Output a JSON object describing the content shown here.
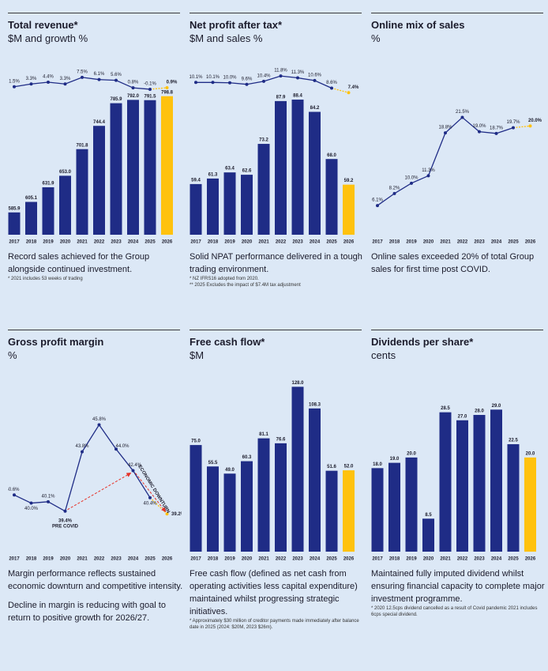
{
  "chart_data": [
    {
      "type": "combo",
      "title": "Total revenue*",
      "subtitle": "$M and growth %",
      "categories": [
        "2017",
        "2018",
        "2019",
        "2020",
        "2021",
        "2022",
        "2023",
        "2024",
        "2025",
        "2026"
      ],
      "series": [
        {
          "type": "bar",
          "color": "#1f2c86",
          "values": [
            585.9,
            605.1,
            631.9,
            653.0,
            701.8,
            744.4,
            785.9,
            792.0,
            791.5,
            798.8
          ],
          "value_labels": [
            "585.9",
            "605.1",
            "631.9",
            "653.0",
            "701.8",
            "744.4",
            "785.9",
            "792.0",
            "791.5",
            "798.8"
          ]
        },
        {
          "type": "line",
          "axis": "y2",
          "color": "#1f2c86",
          "values": [
            1.5,
            3.3,
            4.4,
            3.3,
            7.5,
            6.1,
            5.6,
            0.8,
            -0.1,
            0.9
          ],
          "value_labels": [
            "1.5%",
            "3.3%",
            "4.4%",
            "3.3%",
            "7.5%",
            "6.1%",
            "5.6%",
            "0.8%",
            "-0.1%",
            "0.9%"
          ]
        }
      ],
      "ylim": [
        545,
        849
      ],
      "y2lim": [
        -93,
        13
      ],
      "highlight_color": "#ffc20e",
      "description": [
        "Record sales achieved for the Group alongside continued investment."
      ],
      "notes": [
        "* 2021 includes 53 weeks of trading"
      ]
    },
    {
      "type": "combo",
      "title": "Net profit after tax*",
      "subtitle": "$M and sales %",
      "categories": [
        "2017",
        "2018",
        "2019",
        "2020",
        "2021",
        "2022",
        "2023",
        "2024",
        "2025",
        "2026"
      ],
      "series": [
        {
          "type": "bar",
          "color": "#1f2c86",
          "values": [
            59.4,
            61.3,
            63.4,
            62.6,
            73.2,
            87.9,
            88.4,
            84.2,
            68.0,
            59.2
          ],
          "value_labels": [
            "59.4",
            "61.3",
            "63.4",
            "62.6",
            "73.2",
            "87.9",
            "88.4",
            "84.2",
            "68.0",
            "59.2"
          ]
        },
        {
          "type": "line",
          "axis": "y2",
          "color": "#1f2c86",
          "values": [
            10.1,
            10.1,
            10.0,
            9.6,
            10.4,
            11.8,
            11.3,
            10.6,
            8.6,
            7.4
          ],
          "value_labels": [
            "10.1%",
            "10.1%",
            "10.0%",
            "9.6%",
            "10.4%",
            "11.8%",
            "11.3%",
            "10.6%",
            "8.6%",
            "7.4%"
          ]
        }
      ],
      "ylim": [
        42,
        99
      ],
      "y2lim": [
        -30,
        13.7
      ],
      "highlight_color": "#ffc20e",
      "description": [
        "Solid NPAT performance delivered in a tough trading environment."
      ],
      "notes": [
        "* NZ IFRS16 adopted from 2020.",
        "** 2025 Excludes the impact of $7.4M tax adjustment"
      ]
    },
    {
      "type": "line",
      "title": "Online mix of sales",
      "subtitle": "%",
      "categories": [
        "2017",
        "2018",
        "2019",
        "2020",
        "2021",
        "2022",
        "2023",
        "2024",
        "2025",
        "2026"
      ],
      "series": [
        {
          "type": "line",
          "color": "#1f2c86",
          "values": [
            6.1,
            8.2,
            10.0,
            11.3,
            18.8,
            21.5,
            19.0,
            18.7,
            19.7,
            20.0
          ],
          "value_labels": [
            "6.1%",
            "8.2%",
            "10.0%",
            "11.3%",
            "18.8%",
            "21.5%",
            "19.0%",
            "18.7%",
            "19.7%",
            "20.0%"
          ]
        }
      ],
      "ylim": [
        1,
        30
      ],
      "highlight_color": "#ffc20e",
      "description": [
        "Online sales exceeded 20% of total Group sales for first time post COVID."
      ]
    },
    {
      "type": "line",
      "title": "Gross profit margin",
      "subtitle": "%",
      "categories": [
        "2017",
        "2018",
        "2019",
        "2020",
        "2021",
        "2022",
        "2023",
        "2024",
        "2025",
        "2026"
      ],
      "series": [
        {
          "type": "line",
          "color": "#1f2c86",
          "values": [
            40.6,
            40.0,
            40.1,
            39.4,
            43.8,
            45.8,
            44.0,
            42.4,
            40.4,
            39.2
          ],
          "value_labels": [
            "40.6%",
            "40.0%",
            "40.1%",
            "39.4%",
            "43.8%",
            "45.8%",
            "44.0%",
            "42.4%",
            "40.4%",
            "39.2%"
          ]
        }
      ],
      "ylim": [
        36.4,
        48.7
      ],
      "highlight_color": "#ffc20e",
      "annotations": [
        "PRE COVID",
        "ECONOMIC DOWNTURN"
      ],
      "annotation_color": "#e63329",
      "description": [
        "Margin performance reflects sustained economic downturn and competitive intensity.",
        "Decline in margin is reducing with goal to return to positive growth for 2026/27."
      ]
    },
    {
      "type": "bar",
      "title": "Free cash flow*",
      "subtitle": "$M",
      "categories": [
        "2017",
        "2018",
        "2019",
        "2020",
        "2021",
        "2022",
        "2023",
        "2024",
        "2025",
        "2026"
      ],
      "series": [
        {
          "type": "bar",
          "color": "#1f2c86",
          "values": [
            75.0,
            55.5,
            49.0,
            60.3,
            81.1,
            76.6,
            128.0,
            108.3,
            51.6,
            52.0
          ],
          "value_labels": [
            "75.0",
            "55.5",
            "49.0",
            "60.3",
            "81.1",
            "76.6",
            "128.0",
            "108.3",
            "51.6",
            "52.0"
          ]
        }
      ],
      "ylim": [
        -22,
        129
      ],
      "highlight_color": "#ffc20e",
      "description": [
        "Free cash flow (defined as net cash from operating activities less capital expenditure) maintained whilst progressing strategic initiatives."
      ],
      "notes": [
        "* Approximately $30 million of creditor payments made immediately after balance date in 2025 (2024: $20M, 2023 $26m)."
      ]
    },
    {
      "type": "bar",
      "title": "Dividends per share*",
      "subtitle": "cents",
      "categories": [
        "2017",
        "2018",
        "2019",
        "2020",
        "2021",
        "2022",
        "2023",
        "2024",
        "2025",
        "2026"
      ],
      "series": [
        {
          "type": "bar",
          "color": "#1f2c86",
          "values": [
            18.0,
            19.0,
            20.0,
            8.5,
            28.5,
            27.0,
            28.0,
            29.0,
            22.5,
            20.0
          ],
          "value_labels": [
            "18.0",
            "19.0",
            "20.0",
            "8.5",
            "28.5",
            "27.0",
            "28.0",
            "29.0",
            "22.5",
            "20.0"
          ]
        }
      ],
      "ylim": [
        2.3,
        33.5
      ],
      "highlight_color": "#ffc20e",
      "description": [
        "Maintained fully imputed dividend whilst ensuring financial capacity to complete major investment programme."
      ],
      "notes": [
        "* 2020 12.5cps dividend cancelled as a result of Covid pandemic 2021 includes 6cps special dividend."
      ]
    }
  ]
}
